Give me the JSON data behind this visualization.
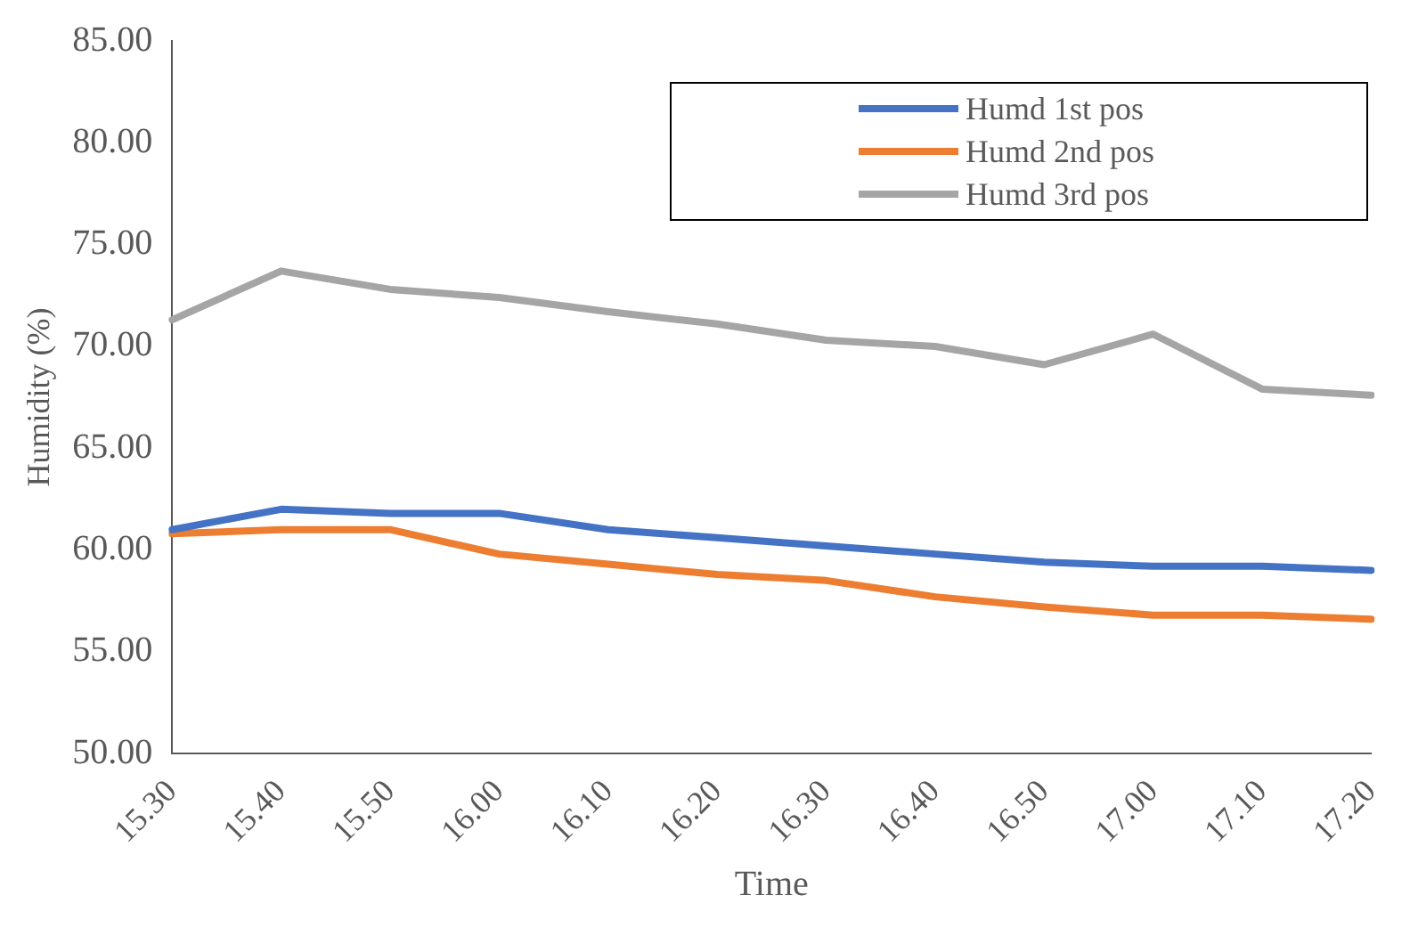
{
  "chart_data": {
    "type": "line",
    "xlabel": "Time",
    "ylabel": "Humidity (%)",
    "categories": [
      "15.30",
      "15.40",
      "15.50",
      "16.00",
      "16.10",
      "16.20",
      "16.30",
      "16.40",
      "16.50",
      "17.00",
      "17.10",
      "17.20"
    ],
    "series": [
      {
        "name": "Humd 1st pos",
        "color": "#4472c4",
        "values": [
          61.0,
          62.0,
          61.8,
          61.8,
          61.0,
          60.6,
          60.2,
          59.8,
          59.4,
          59.2,
          59.2,
          59.0
        ]
      },
      {
        "name": "Humd 2nd pos",
        "color": "#ed7d31",
        "values": [
          60.8,
          61.0,
          61.0,
          59.8,
          59.3,
          58.8,
          58.5,
          57.7,
          57.2,
          56.8,
          56.8,
          56.6
        ]
      },
      {
        "name": "Humd 3rd pos",
        "color": "#a5a5a5",
        "values": [
          71.3,
          73.7,
          72.8,
          72.4,
          71.7,
          71.1,
          70.3,
          70.0,
          69.1,
          70.6,
          67.9,
          67.6
        ]
      }
    ],
    "ylim": [
      50,
      85
    ],
    "yticks": [
      {
        "value": 50,
        "label": "50.00"
      },
      {
        "value": 55,
        "label": "55.00"
      },
      {
        "value": 60,
        "label": "60.00"
      },
      {
        "value": 65,
        "label": "65.00"
      },
      {
        "value": 70,
        "label": "70.00"
      },
      {
        "value": 75,
        "label": "75.00"
      },
      {
        "value": 80,
        "label": "80.00"
      },
      {
        "value": 85,
        "label": "85.00"
      }
    ],
    "grid": false,
    "legend": "top right",
    "marker": "none",
    "line_style": "solid"
  }
}
